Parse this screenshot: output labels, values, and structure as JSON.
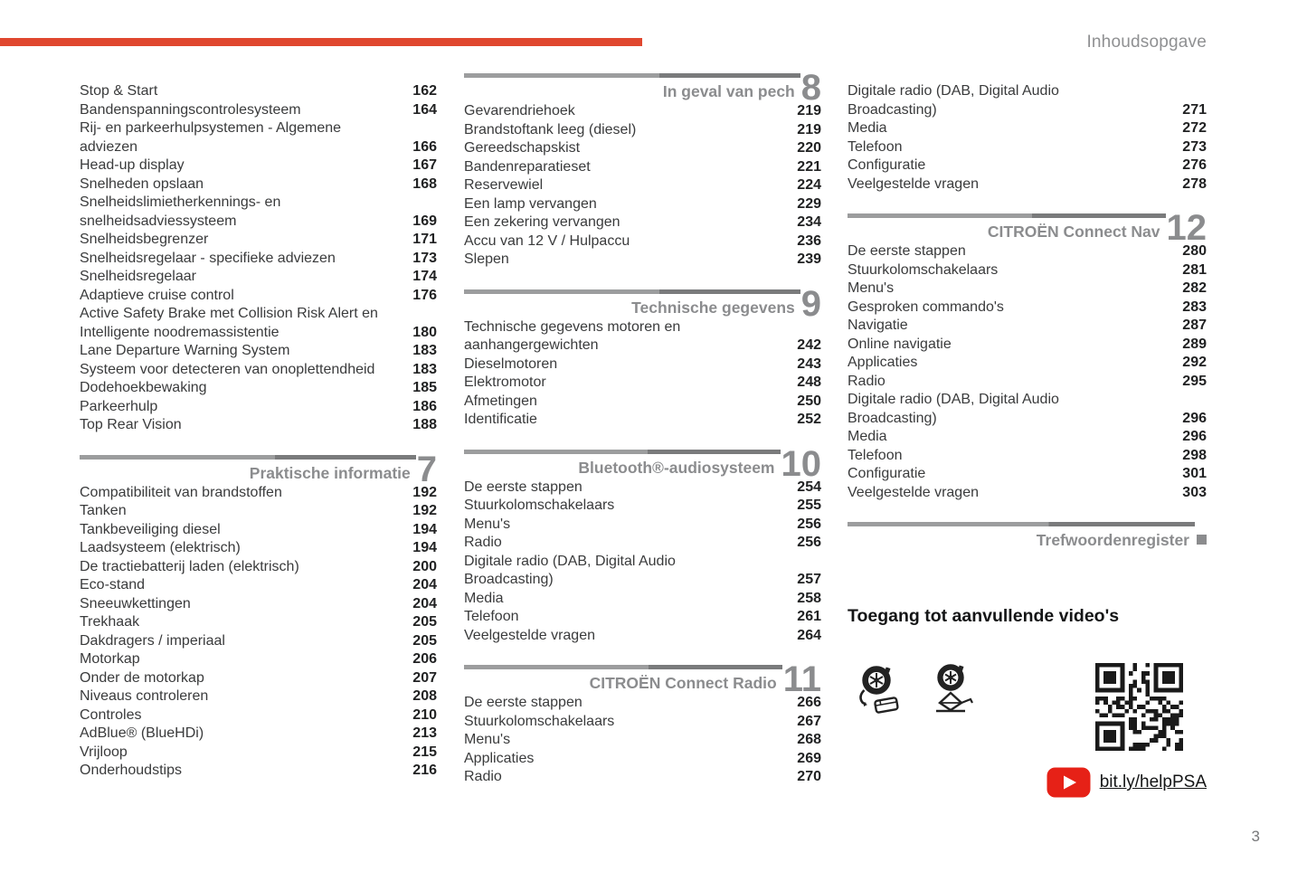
{
  "page_header": {
    "title": "Inhoudsopgave"
  },
  "footer": {
    "page_number": "3"
  },
  "colors": {
    "accent_red": "#e0472f",
    "section_gray": "#8b8c8e",
    "youtube_red": "#e62117"
  },
  "videos": {
    "heading": "Toegang tot aanvullende video's",
    "link_text": "bit.ly/helpPSA",
    "icons": [
      "tire-repair-kit-icon",
      "wheel-jack-icon",
      "qr-code-icon",
      "youtube-play-icon"
    ]
  },
  "columns": [
    {
      "blocks": [
        {
          "entries": [
            {
              "label": "Stop & Start",
              "page": "162"
            },
            {
              "label": "Bandenspanningscontrolesysteem",
              "page": "164"
            },
            {
              "label": "Rij- en parkeerhulpsystemen - Algemene\nadviezen",
              "page": "166"
            },
            {
              "label": "Head-up display",
              "page": "167"
            },
            {
              "label": "Snelheden opslaan",
              "page": "168"
            },
            {
              "label": "Snelheidslimietherkennings- en\nsnelheidsadviessysteem",
              "page": "169"
            },
            {
              "label": "Snelheidsbegrenzer",
              "page": "171"
            },
            {
              "label": "Snelheidsregelaar - specifieke adviezen",
              "page": "173"
            },
            {
              "label": "Snelheidsregelaar",
              "page": "174"
            },
            {
              "label": "Adaptieve cruise control",
              "page": "176"
            },
            {
              "label": "Active Safety Brake met Collision Risk Alert en\nIntelligente noodremassistentie",
              "page": "180"
            },
            {
              "label": "Lane Departure Warning System",
              "page": "183"
            },
            {
              "label": "Systeem voor detecteren van onoplettendheid",
              "page": "183"
            },
            {
              "label": "Dodehoekbewaking",
              "page": "185"
            },
            {
              "label": "Parkeerhulp",
              "page": "186"
            },
            {
              "label": "Top Rear Vision",
              "page": "188"
            }
          ]
        },
        {
          "number": "7",
          "title": "Praktische informatie",
          "entries": [
            {
              "label": "Compatibiliteit van brandstoffen",
              "page": "192"
            },
            {
              "label": "Tanken",
              "page": "192"
            },
            {
              "label": "Tankbeveiliging diesel",
              "page": "194"
            },
            {
              "label": "Laadsysteem (elektrisch)",
              "page": "194"
            },
            {
              "label": "De tractiebatterij laden (elektrisch)",
              "page": "200"
            },
            {
              "label": "Eco-stand",
              "page": "204"
            },
            {
              "label": "Sneeuwkettingen",
              "page": "204"
            },
            {
              "label": "Trekhaak",
              "page": "205"
            },
            {
              "label": "Dakdragers / imperiaal",
              "page": "205"
            },
            {
              "label": "Motorkap",
              "page": "206"
            },
            {
              "label": "Onder de motorkap",
              "page": "207"
            },
            {
              "label": "Niveaus controleren",
              "page": "208"
            },
            {
              "label": "Controles",
              "page": "210"
            },
            {
              "label": "AdBlue® (BlueHDi)",
              "page": "213"
            },
            {
              "label": "Vrijloop",
              "page": "215"
            },
            {
              "label": "Onderhoudstips",
              "page": "216"
            }
          ]
        }
      ]
    },
    {
      "blocks": [
        {
          "number": "8",
          "title": "In geval van pech",
          "entries": [
            {
              "label": "Gevarendriehoek",
              "page": "219"
            },
            {
              "label": "Brandstoftank leeg (diesel)",
              "page": "219"
            },
            {
              "label": "Gereedschapskist",
              "page": "220"
            },
            {
              "label": "Bandenreparatieset",
              "page": "221"
            },
            {
              "label": "Reservewiel",
              "page": "224"
            },
            {
              "label": "Een lamp vervangen",
              "page": "229"
            },
            {
              "label": "Een zekering vervangen",
              "page": "234"
            },
            {
              "label": "Accu van 12 V / Hulpaccu",
              "page": "236"
            },
            {
              "label": "Slepen",
              "page": "239"
            }
          ]
        },
        {
          "number": "9",
          "title": "Technische gegevens",
          "entries": [
            {
              "label": "Technische gegevens motoren en\naanhangergewichten",
              "page": "242"
            },
            {
              "label": "Dieselmotoren",
              "page": "243"
            },
            {
              "label": "Elektromotor",
              "page": "248"
            },
            {
              "label": "Afmetingen",
              "page": "250"
            },
            {
              "label": "Identificatie",
              "page": "252"
            }
          ]
        },
        {
          "number": "10",
          "title": "Bluetooth®-audiosysteem",
          "entries": [
            {
              "label": "De eerste stappen",
              "page": "254"
            },
            {
              "label": "Stuurkolomschakelaars",
              "page": "255"
            },
            {
              "label": "Menu's",
              "page": "256"
            },
            {
              "label": "Radio",
              "page": "256"
            },
            {
              "label": "Digitale radio (DAB, Digital Audio\nBroadcasting)",
              "page": "257"
            },
            {
              "label": "Media",
              "page": "258"
            },
            {
              "label": "Telefoon",
              "page": "261"
            },
            {
              "label": "Veelgestelde vragen",
              "page": "264"
            }
          ]
        },
        {
          "number": "11",
          "title": "CITROËN Connect Radio",
          "entries": [
            {
              "label": "De eerste stappen",
              "page": "266"
            },
            {
              "label": "Stuurkolomschakelaars",
              "page": "267"
            },
            {
              "label": "Menu's",
              "page": "268"
            },
            {
              "label": "Applicaties",
              "page": "269"
            },
            {
              "label": "Radio",
              "page": "270"
            }
          ]
        }
      ]
    },
    {
      "blocks": [
        {
          "entries": [
            {
              "label": "Digitale radio (DAB, Digital Audio\nBroadcasting)",
              "page": "271"
            },
            {
              "label": "Media",
              "page": "272"
            },
            {
              "label": "Telefoon",
              "page": "273"
            },
            {
              "label": "Configuratie",
              "page": "276"
            },
            {
              "label": "Veelgestelde vragen",
              "page": "278"
            }
          ]
        },
        {
          "number": "12",
          "title": "CITROËN Connect Nav",
          "entries": [
            {
              "label": "De eerste stappen",
              "page": "280"
            },
            {
              "label": "Stuurkolomschakelaars",
              "page": "281"
            },
            {
              "label": "Menu's",
              "page": "282"
            },
            {
              "label": "Gesproken commando's",
              "page": "283"
            },
            {
              "label": "Navigatie",
              "page": "287"
            },
            {
              "label": "Online navigatie",
              "page": "289"
            },
            {
              "label": "Applicaties",
              "page": "292"
            },
            {
              "label": "Radio",
              "page": "295"
            },
            {
              "label": "Digitale radio (DAB, Digital Audio\nBroadcasting)",
              "page": "296"
            },
            {
              "label": "Media",
              "page": "296"
            },
            {
              "label": "Telefoon",
              "page": "298"
            },
            {
              "label": "Configuratie",
              "page": "301"
            },
            {
              "label": "Veelgestelde vragen",
              "page": "303"
            }
          ]
        },
        {
          "title": "Trefwoordenregister",
          "marker": true,
          "entries": []
        }
      ]
    }
  ]
}
